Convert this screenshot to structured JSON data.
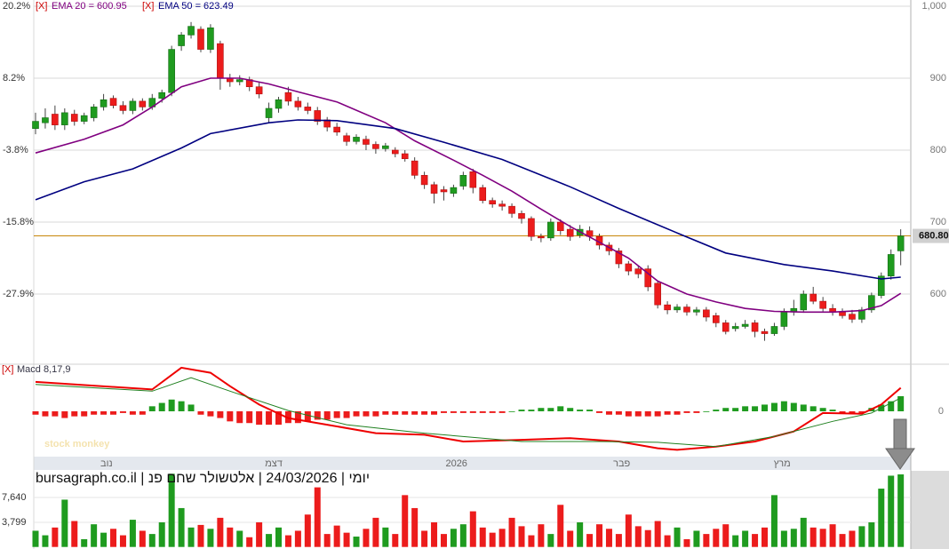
{
  "caption": "יומי | 24/03/2026 | אלטשולר שחם פנ | bursagraph.co.il",
  "watermark": "stock monkey",
  "chart_data": [
    {
      "type": "candlestick",
      "legend_marker": "[X]",
      "ylim": [
        502.5,
        1008.6
      ],
      "yticks": [
        {
          "value": 1000,
          "label": "1,000"
        },
        900,
        800,
        700,
        600
      ],
      "left_ticks": [
        {
          "value": 1000,
          "label": "20.2%"
        },
        {
          "value": 900,
          "label": "8.2%"
        },
        {
          "value": 800,
          "label": "-3.8%"
        },
        {
          "value": 700,
          "label": "-15.8%"
        },
        {
          "value": 600,
          "label": "-27.9%"
        }
      ],
      "grid": true,
      "up_color": "#1f9b1f",
      "down_color": "#ec1c1c",
      "last_price": {
        "value": 680.8,
        "label": "680.80"
      },
      "xlabels": [
        {
          "x": 7.3,
          "label": "נוב"
        },
        {
          "x": 24.5,
          "label": "דצמ"
        },
        {
          "x": 43.3,
          "label": "2026"
        },
        {
          "x": 60.3,
          "label": "פבר"
        },
        {
          "x": 76.8,
          "label": "מרץ"
        }
      ],
      "candles": [
        [
          830,
          852,
          822,
          840
        ],
        [
          838,
          858,
          830,
          845
        ],
        [
          850,
          862,
          828,
          835
        ],
        [
          835,
          858,
          828,
          852
        ],
        [
          850,
          856,
          834,
          840
        ],
        [
          840,
          852,
          836,
          848
        ],
        [
          845,
          864,
          840,
          860
        ],
        [
          860,
          878,
          855,
          870
        ],
        [
          872,
          876,
          858,
          862
        ],
        [
          862,
          868,
          850,
          855
        ],
        [
          855,
          872,
          850,
          868
        ],
        [
          868,
          872,
          855,
          860
        ],
        [
          860,
          878,
          856,
          872
        ],
        [
          872,
          884,
          866,
          880
        ],
        [
          880,
          945,
          875,
          940
        ],
        [
          945,
          964,
          938,
          960
        ],
        [
          960,
          978,
          955,
          972
        ],
        [
          968,
          972,
          936,
          940
        ],
        [
          940,
          975,
          935,
          970
        ],
        [
          948,
          952,
          884,
          900
        ],
        [
          900,
          906,
          888,
          895
        ],
        [
          895,
          904,
          890,
          898
        ],
        [
          898,
          902,
          882,
          888
        ],
        [
          888,
          894,
          872,
          878
        ],
        [
          845,
          866,
          838,
          858
        ],
        [
          858,
          874,
          852,
          870
        ],
        [
          880,
          888,
          862,
          868
        ],
        [
          868,
          874,
          855,
          860
        ],
        [
          860,
          866,
          850,
          855
        ],
        [
          855,
          860,
          835,
          840
        ],
        [
          842,
          846,
          826,
          832
        ],
        [
          832,
          838,
          820,
          825
        ],
        [
          820,
          824,
          806,
          812
        ],
        [
          812,
          822,
          808,
          818
        ],
        [
          815,
          820,
          800,
          808
        ],
        [
          808,
          812,
          795,
          802
        ],
        [
          802,
          810,
          798,
          806
        ],
        [
          800,
          804,
          790,
          795
        ],
        [
          795,
          800,
          784,
          788
        ],
        [
          785,
          790,
          760,
          765
        ],
        [
          765,
          770,
          746,
          752
        ],
        [
          752,
          756,
          726,
          740
        ],
        [
          745,
          750,
          730,
          742
        ],
        [
          740,
          752,
          735,
          748
        ],
        [
          750,
          770,
          745,
          765
        ],
        [
          770,
          774,
          740,
          748
        ],
        [
          748,
          752,
          726,
          730
        ],
        [
          730,
          734,
          720,
          725
        ],
        [
          725,
          730,
          716,
          722
        ],
        [
          722,
          726,
          706,
          712
        ],
        [
          712,
          716,
          698,
          705
        ],
        [
          705,
          708,
          674,
          680
        ],
        [
          680,
          684,
          672,
          678
        ],
        [
          678,
          705,
          674,
          700
        ],
        [
          700,
          704,
          682,
          688
        ],
        [
          690,
          696,
          674,
          680
        ],
        [
          682,
          696,
          678,
          690
        ],
        [
          688,
          694,
          674,
          680
        ],
        [
          680,
          684,
          662,
          668
        ],
        [
          668,
          672,
          654,
          660
        ],
        [
          660,
          664,
          636,
          642
        ],
        [
          642,
          646,
          626,
          632
        ],
        [
          635,
          640,
          622,
          628
        ],
        [
          635,
          640,
          604,
          610
        ],
        [
          615,
          618,
          580,
          585
        ],
        [
          585,
          590,
          572,
          578
        ],
        [
          578,
          586,
          574,
          582
        ],
        [
          582,
          586,
          570,
          575
        ],
        [
          575,
          582,
          570,
          578
        ],
        [
          578,
          582,
          562,
          568
        ],
        [
          570,
          574,
          554,
          560
        ],
        [
          560,
          564,
          544,
          548
        ],
        [
          552,
          560,
          548,
          555
        ],
        [
          555,
          564,
          552,
          558
        ],
        [
          560,
          564,
          540,
          548
        ],
        [
          548,
          552,
          535,
          545
        ],
        [
          545,
          560,
          542,
          555
        ],
        [
          555,
          580,
          550,
          575
        ],
        [
          575,
          592,
          570,
          580
        ],
        [
          578,
          605,
          574,
          600
        ],
        [
          600,
          610,
          586,
          590
        ],
        [
          590,
          596,
          576,
          580
        ],
        [
          580,
          586,
          570,
          575
        ],
        [
          575,
          580,
          566,
          570
        ],
        [
          572,
          578,
          560,
          565
        ],
        [
          565,
          582,
          560,
          578
        ],
        [
          578,
          602,
          574,
          598
        ],
        [
          598,
          630,
          594,
          625
        ],
        [
          625,
          662,
          620,
          655
        ],
        [
          660,
          690,
          640,
          680.8
        ]
      ],
      "series": [
        {
          "name": "EMA 20 = 600.95",
          "color": "#800080",
          "x": [
            0,
            5,
            9,
            12,
            15,
            18,
            21,
            24,
            27,
            31,
            36,
            39,
            43,
            46,
            49,
            52,
            55,
            58,
            61,
            64,
            67,
            70,
            73,
            76,
            79,
            82,
            85,
            87,
            89
          ],
          "values": [
            796,
            815,
            835,
            860,
            888,
            900,
            900,
            892,
            881,
            867,
            838,
            813,
            786,
            765,
            743,
            718,
            694,
            672,
            650,
            618,
            600,
            589,
            580,
            576,
            575,
            575,
            577,
            584,
            600.95
          ]
        },
        {
          "name": "EMA 50 = 623.49",
          "color": "#000080",
          "x": [
            0,
            5,
            10,
            15,
            18,
            24,
            27,
            31,
            37,
            42,
            48,
            55,
            60,
            66,
            71,
            77,
            82,
            87,
            89
          ],
          "values": [
            731,
            756,
            774,
            803,
            823,
            838,
            842,
            841,
            830,
            811,
            787,
            749,
            719,
            685,
            657,
            641,
            632,
            621,
            623.49
          ]
        }
      ]
    },
    {
      "type": "macd",
      "legend_marker": "[X]",
      "title": "Macd 8,17,9",
      "ylim": [
        -27,
        27
      ],
      "yticks": [
        0
      ],
      "histogram": {
        "up_color": "#1f9b1f",
        "down_color": "#ec1c1c",
        "values": [
          -2,
          -3,
          -3,
          -4,
          -3,
          -3,
          -2,
          -2,
          -2,
          -1,
          -2,
          -2,
          3,
          5,
          7,
          6,
          4,
          -2,
          -3,
          -4,
          -6,
          -7,
          -7,
          -8,
          -8,
          -8,
          -7,
          -7,
          -6,
          -5,
          -5,
          -4,
          -4,
          -3,
          -3,
          -3,
          -2,
          -2,
          -2,
          -2,
          -2,
          -2,
          -1,
          -1,
          -1,
          -1,
          -1,
          -1,
          -1,
          0,
          1,
          1,
          2,
          2,
          3,
          2,
          1,
          1,
          -1,
          -2,
          -2,
          -3,
          -3,
          -3,
          -3,
          -2,
          -2,
          -1,
          -1,
          0,
          1,
          2,
          2,
          3,
          3,
          4,
          5,
          6,
          5,
          4,
          3,
          2,
          1,
          -1,
          -1,
          -1,
          2,
          4,
          6,
          9
        ]
      },
      "series": [
        {
          "color": "#ee0000",
          "x": [
            0,
            12,
            15,
            18,
            20,
            23,
            26,
            30,
            35,
            40,
            44,
            50,
            55,
            60,
            64,
            66,
            70,
            74,
            78,
            81,
            85,
            87,
            89
          ],
          "values": [
            17.5,
            13,
            26,
            23,
            15,
            4,
            -4,
            -8,
            -13,
            -14,
            -18,
            -17,
            -16,
            -18,
            -22,
            -23,
            -21,
            -18,
            -12,
            -1,
            -1.5,
            4,
            14
          ]
        },
        {
          "color": "#208020",
          "x": [
            0,
            12,
            16,
            20,
            26,
            32,
            40,
            50,
            58,
            64,
            70,
            76,
            82,
            86,
            89
          ],
          "values": [
            16,
            12,
            20,
            12,
            0.5,
            -8,
            -13,
            -18,
            -18,
            -18.5,
            -21,
            -15,
            -6,
            -1,
            8
          ]
        }
      ]
    },
    {
      "type": "volume",
      "ylim": [
        0,
        11750
      ],
      "yticks": [
        {
          "value": 7640,
          "label": "7,640"
        },
        {
          "value": 3799,
          "label": "3,799"
        }
      ],
      "values": [
        2500,
        1800,
        3000,
        7300,
        4000,
        1200,
        3500,
        2200,
        2800,
        1800,
        4200,
        2500,
        2000,
        3800,
        11300,
        6000,
        3000,
        3400,
        2800,
        4500,
        3000,
        2500,
        1500,
        3800,
        2000,
        3000,
        1800,
        2500,
        5000,
        9200,
        2000,
        3300,
        2200,
        1600,
        2800,
        4500,
        3000,
        2000,
        8000,
        6000,
        2500,
        3800,
        2000,
        2800,
        3500,
        5500,
        3000,
        2200,
        2800,
        4500,
        3200,
        1800,
        3500,
        2000,
        6500,
        2500,
        3800,
        2000,
        3500,
        2800,
        2000,
        5000,
        3200,
        2600,
        4000,
        1800,
        3000,
        1200,
        2500,
        2000,
        2800,
        3500,
        1800,
        2500,
        2000,
        3000,
        8000,
        2500,
        2800,
        4500,
        3000,
        2800,
        3500,
        2000,
        2500,
        3200,
        3800,
        9000,
        11000,
        11200
      ]
    }
  ]
}
